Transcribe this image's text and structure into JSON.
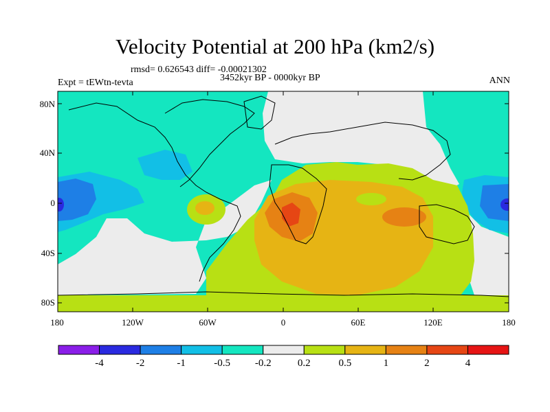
{
  "title": "Velocity Potential at 200 hPa (km2/s)",
  "stats_line": "rmsd= 0.626543 diff= -0.00021302",
  "period": "3452kyr BP - 0000kyr BP",
  "experiment": "Expt = tEWtn-tevta",
  "season": "ANN",
  "lat_ticks": [
    "80N",
    "40N",
    "0",
    "40S",
    "80S"
  ],
  "lon_ticks": [
    "180",
    "120W",
    "60W",
    "0",
    "60E",
    "120E",
    "180"
  ],
  "colorbar": {
    "labels": [
      "-4",
      "-2",
      "-1",
      "-0.5",
      "-0.2",
      "0.2",
      "0.5",
      "1",
      "2",
      "4"
    ],
    "colors": [
      "#8a1ee8",
      "#2a2ae0",
      "#1e7fe6",
      "#12bfe6",
      "#14e6c0",
      "#ececec",
      "#b8e014",
      "#e6b414",
      "#e68214",
      "#e64614",
      "#e61414"
    ]
  }
}
